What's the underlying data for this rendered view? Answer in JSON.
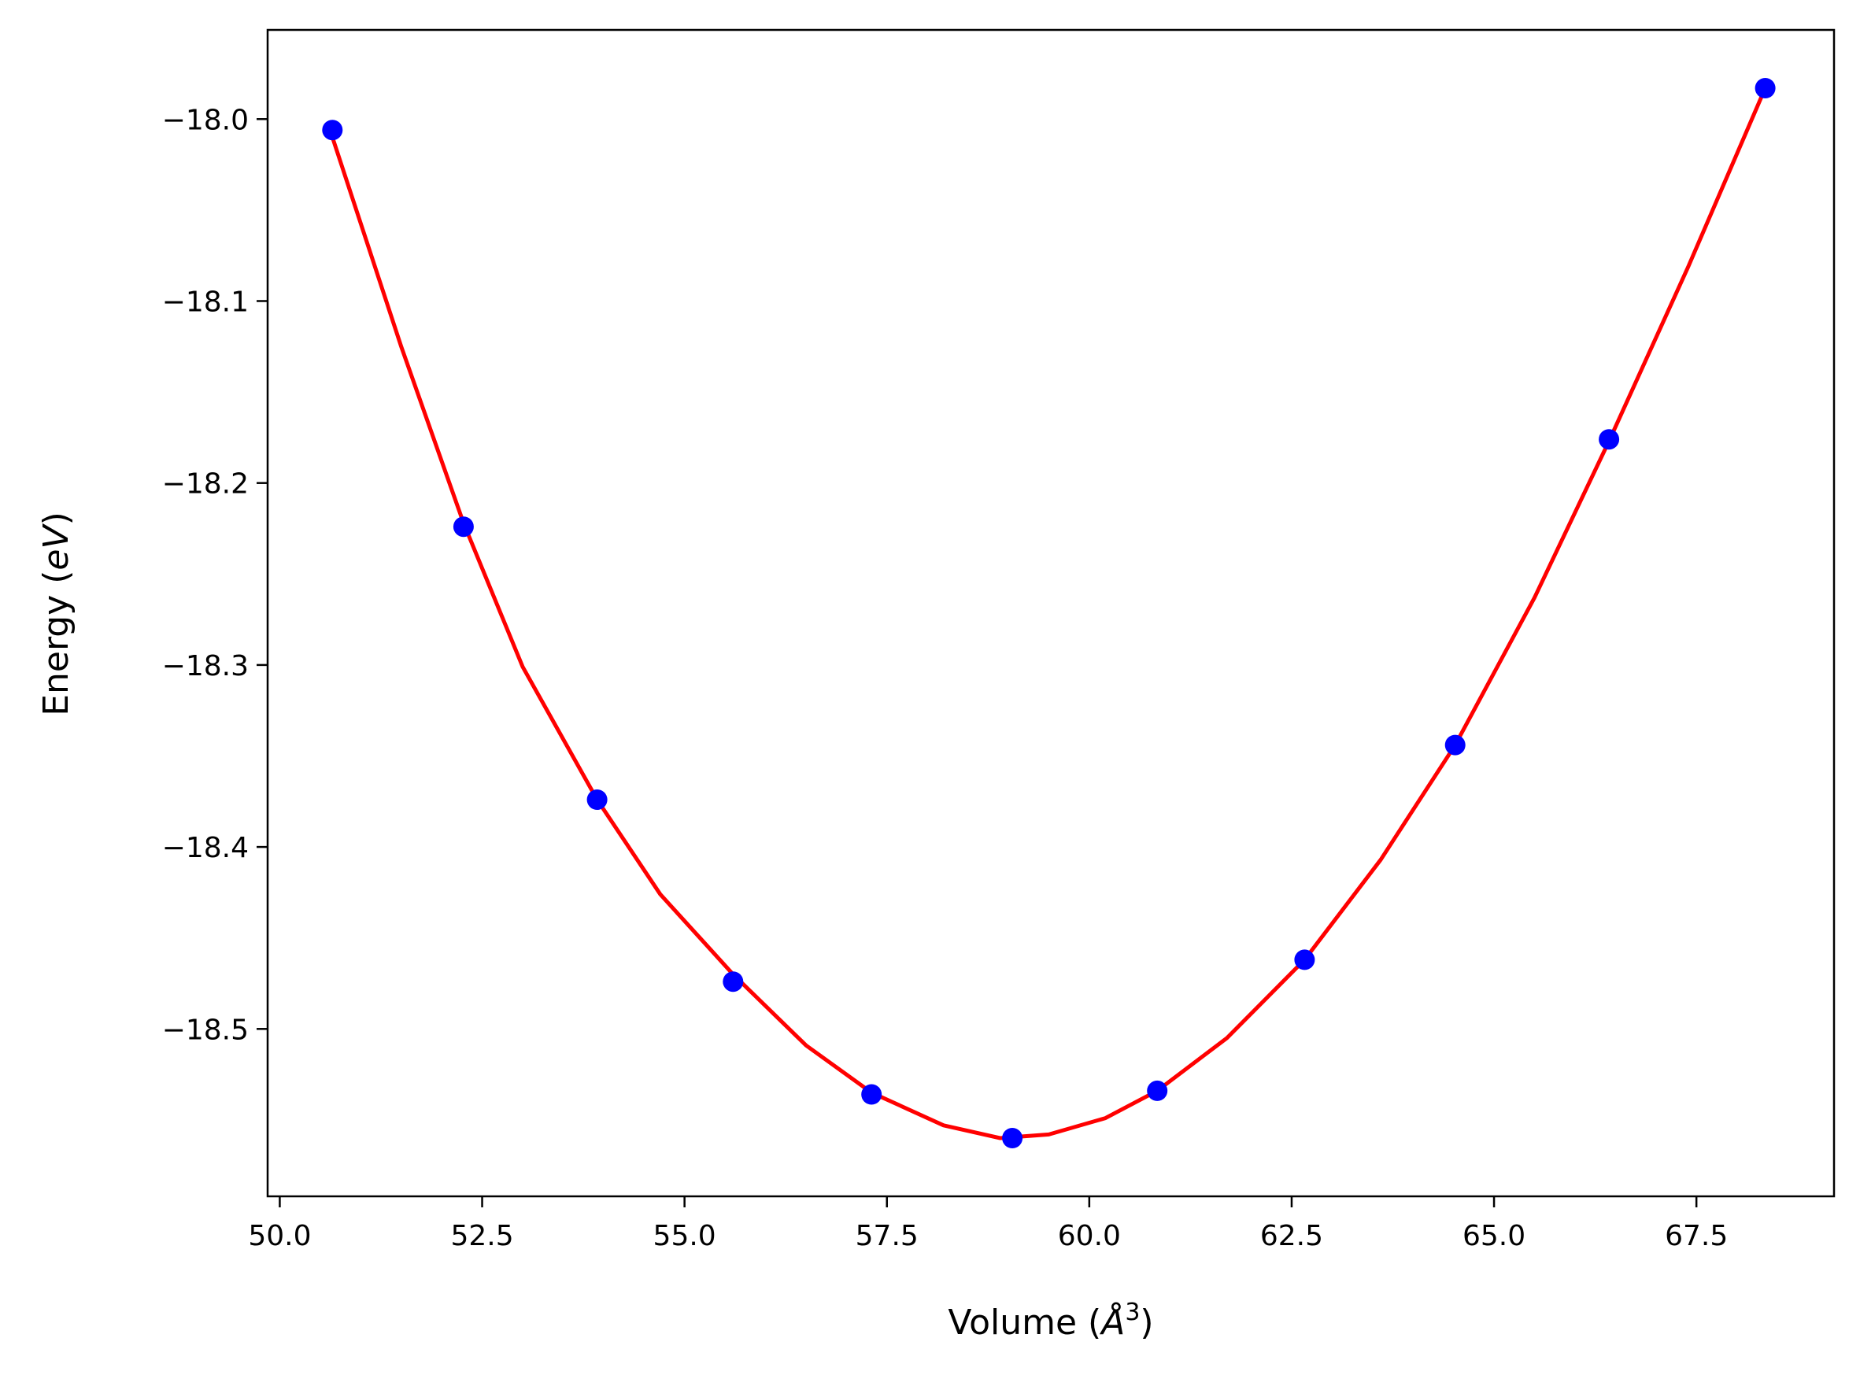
{
  "chart_data": {
    "type": "scatter",
    "title": "",
    "xlabel": "Volume (Å³)",
    "ylabel": "Energy (eV)",
    "xlabel_parts": {
      "before": "Volume (",
      "symbol": "Å",
      "power": "3",
      "after": ")"
    },
    "ylabel_parts": {
      "before": "Energy (",
      "unit": "eV",
      "after": ")"
    },
    "xlim": [
      49.85,
      69.2
    ],
    "ylim": [
      -18.592,
      -17.951
    ],
    "xticks": [
      50.0,
      52.5,
      55.0,
      57.5,
      60.0,
      62.5,
      65.0,
      67.5
    ],
    "xtick_labels": [
      "50.0",
      "52.5",
      "55.0",
      "57.5",
      "60.0",
      "62.5",
      "65.0",
      "67.5"
    ],
    "yticks": [
      -18.0,
      -18.1,
      -18.2,
      -18.3,
      -18.4,
      -18.5
    ],
    "ytick_labels": [
      "−18.0",
      "−18.1",
      "−18.2",
      "−18.3",
      "−18.4",
      "−18.5"
    ],
    "grid": false,
    "series": [
      {
        "kind": "points",
        "color": "#0000ff",
        "x": [
          50.65,
          52.27,
          53.92,
          55.6,
          57.31,
          59.05,
          60.84,
          62.66,
          64.52,
          66.42,
          68.35
        ],
        "y": [
          -18.006,
          -18.224,
          -18.374,
          -18.474,
          -18.536,
          -18.56,
          -18.534,
          -18.462,
          -18.344,
          -18.176,
          -17.983
        ]
      },
      {
        "kind": "fit-curve",
        "color": "#ff0000",
        "x": [
          50.65,
          51.5,
          52.27,
          53.0,
          53.92,
          54.7,
          55.6,
          56.5,
          57.31,
          58.2,
          58.9,
          59.5,
          60.2,
          60.84,
          61.7,
          62.66,
          63.6,
          64.52,
          65.5,
          66.42,
          67.4,
          68.35
        ],
        "y": [
          -18.01,
          -18.125,
          -18.222,
          -18.301,
          -18.374,
          -18.426,
          -18.47,
          -18.509,
          -18.535,
          -18.553,
          -18.56,
          -18.558,
          -18.549,
          -18.534,
          -18.505,
          -18.462,
          -18.407,
          -18.344,
          -18.263,
          -18.177,
          -18.081,
          -17.983
        ]
      }
    ]
  }
}
